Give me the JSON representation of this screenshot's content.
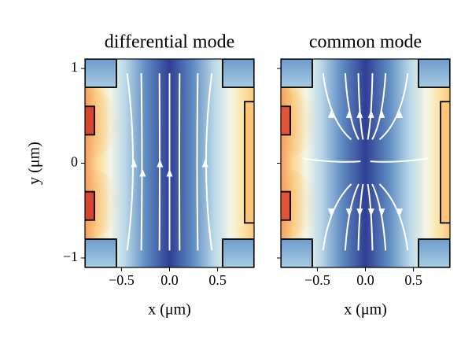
{
  "chart_data": [
    {
      "type": "heatmap",
      "title": "differential mode",
      "xlabel": "x (μm)",
      "ylabel": "y (μm)",
      "xlim": [
        -0.88,
        0.88
      ],
      "ylim": [
        -1.1,
        1.1
      ],
      "xticks": [
        {
          "value": -0.5,
          "label": "−0.5"
        },
        {
          "value": 0,
          "label": "0.0"
        },
        0.5
      ],
      "yticks": [
        {
          "value": -1,
          "label": "−1"
        },
        0,
        1
      ]
    },
    {
      "type": "heatmap",
      "title": "common mode",
      "xlabel": "x (μm)",
      "xlim": [
        -0.88,
        0.88
      ],
      "ylim": [
        -1.1,
        1.1
      ],
      "xticks": [
        {
          "value": -0.5,
          "label": "−0.5"
        },
        {
          "value": 0,
          "label": "0.0"
        },
        0.5
      ]
    }
  ]
}
